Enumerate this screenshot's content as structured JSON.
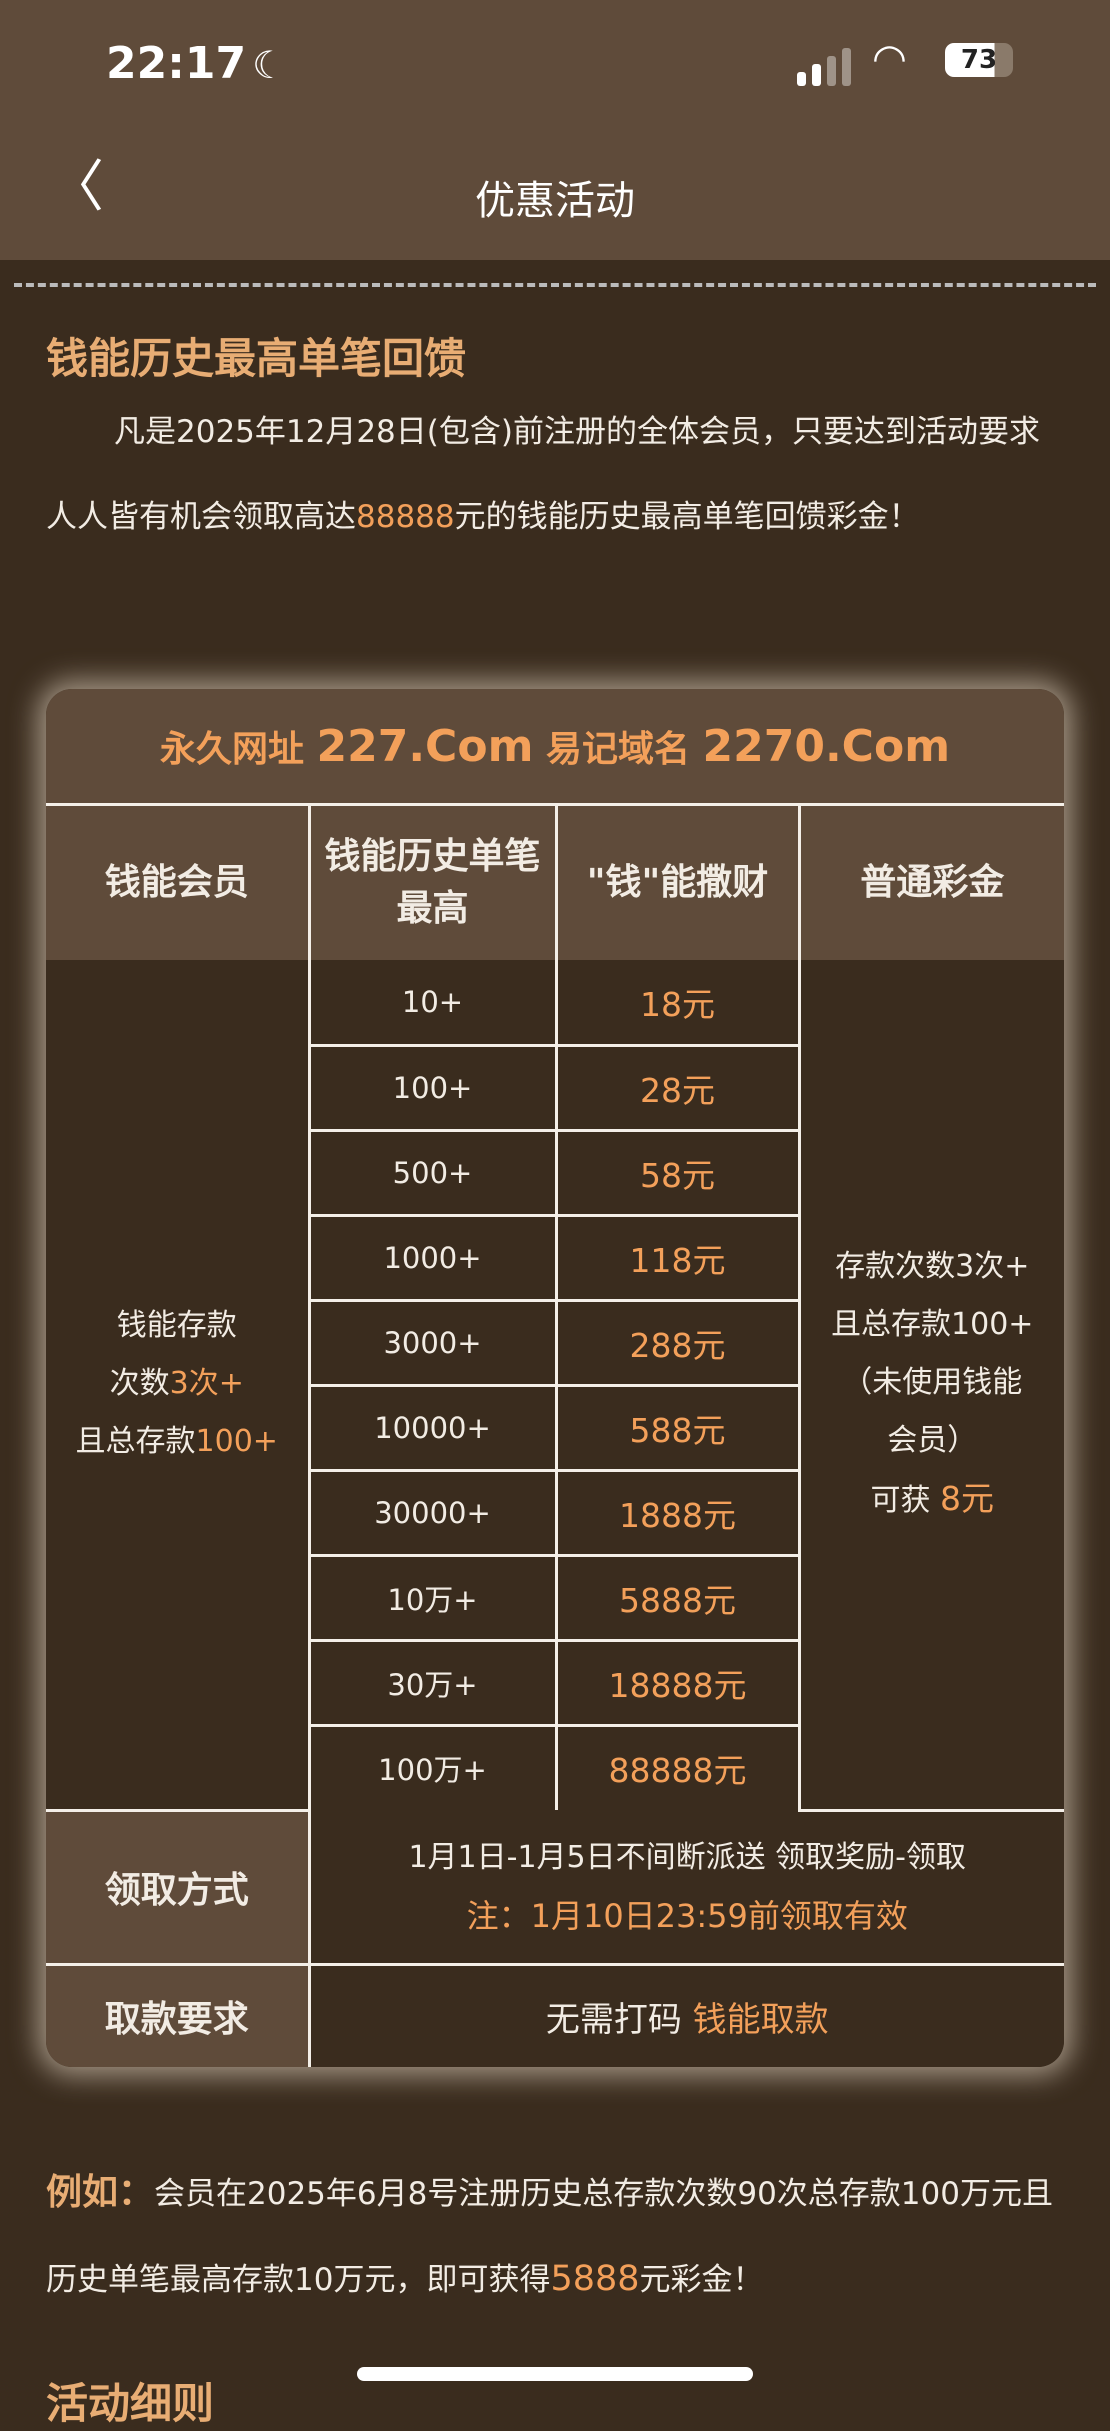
{
  "status": {
    "time": "22:17",
    "battery": "73"
  },
  "nav": {
    "title": "优惠活动"
  },
  "heading": "钱能历史最高单笔回馈",
  "intro": {
    "p1": "凡是2025年12月28日(包含)前注册的全体会员，只要达到活动要求人人皆有机会领取高达",
    "amount": "88888",
    "p2": "元的钱能历史最高单笔回馈彩金！"
  },
  "table": {
    "banner": {
      "a": "永久网址 ",
      "b": "227.Com",
      "c": " 易记域名 ",
      "d": "2270.Com"
    },
    "headers": [
      "钱能会员",
      "钱能历史单笔最高",
      "\"钱\"能撒财",
      "普通彩金"
    ],
    "member_cond": {
      "l1": "钱能存款",
      "l2a": "次数",
      "l2b": "3次+",
      "l3a": "且总存款",
      "l3b": "100+"
    },
    "rows": [
      [
        "10+",
        "18元"
      ],
      [
        "100+",
        "28元"
      ],
      [
        "500+",
        "58元"
      ],
      [
        "1000+",
        "118元"
      ],
      [
        "3000+",
        "288元"
      ],
      [
        "10000+",
        "588元"
      ],
      [
        "30000+",
        "1888元"
      ],
      [
        "10万+",
        "5888元"
      ],
      [
        "30万+",
        "18888元"
      ],
      [
        "100万+",
        "88888元"
      ]
    ],
    "normal": {
      "l1": "存款次数3次+",
      "l2": "且总存款100+",
      "l3": "（未使用钱能",
      "l4": "会员）",
      "l5a": "可获 ",
      "l5b": "8元"
    },
    "claim": {
      "label": "领取方式",
      "line1": "1月1日-1月5日不间断派送 领取奖励-领取",
      "line2": "注：1月10日23:59前领取有效"
    },
    "withdraw": {
      "label": "取款要求",
      "a": "无需打码 ",
      "b": "钱能取款"
    }
  },
  "example": {
    "key": "例如：",
    "t1": "会员在2025年6月8号注册历史总存款次数90次总存款100万元且历史单笔最高存款10万元，即可获得",
    "amount": "5888",
    "t2": "元彩金！"
  },
  "next_heading": "活动细则"
}
